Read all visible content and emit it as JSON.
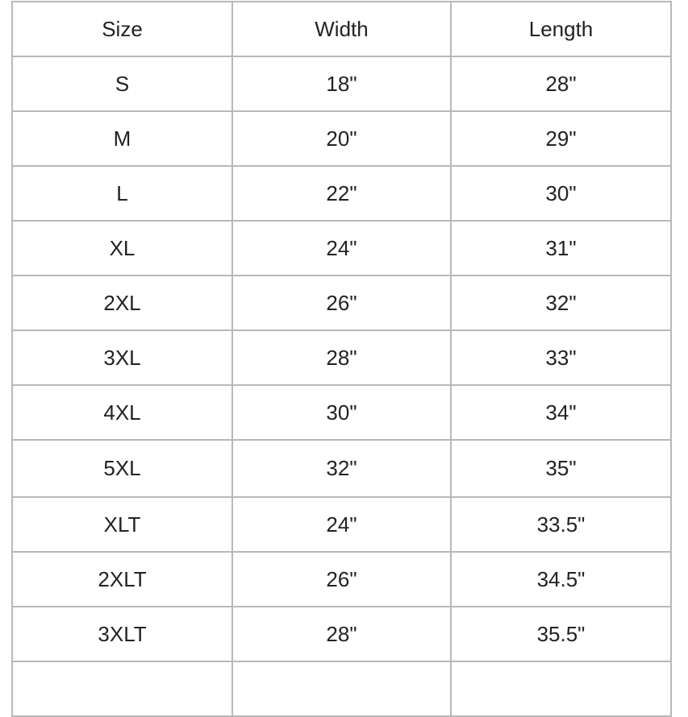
{
  "table": {
    "headers": [
      "Size",
      "Width",
      "Length"
    ],
    "rows": [
      [
        "S",
        "18\"",
        "28\""
      ],
      [
        "M",
        "20\"",
        "29\""
      ],
      [
        "L",
        "22\"",
        "30\""
      ],
      [
        "XL",
        "24\"",
        "31\""
      ],
      [
        "2XL",
        "26\"",
        "32\""
      ],
      [
        "3XL",
        "28\"",
        "33\""
      ],
      [
        "4XL",
        "30\"",
        "34\""
      ],
      [
        "5XL",
        "32\"",
        "35\""
      ],
      [
        "XLT",
        "24\"",
        "33.5\""
      ],
      [
        "2XLT",
        "26\"",
        "34.5\""
      ],
      [
        "3XLT",
        "28\"",
        "35.5\""
      ]
    ]
  }
}
